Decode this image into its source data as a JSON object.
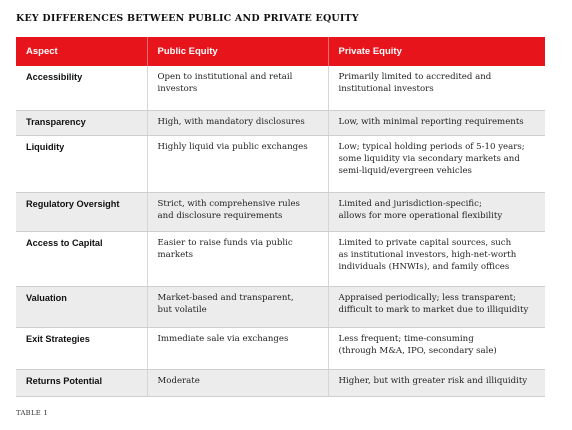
{
  "title": "KEY DIFFERENCES BETWEEN PUBLIC AND PRIVATE EQUITY",
  "headers": {
    "aspect": "Aspect",
    "public": "Public Equity",
    "private": "Private Equity"
  },
  "rows": [
    {
      "aspect": "Accessibility",
      "public": "Open to institutional and retail\ninvestors",
      "private": "Primarily limited to accredited and\ninstitutional investors"
    },
    {
      "aspect": "Transparency",
      "public": "High, with mandatory disclosures",
      "private": "Low, with minimal reporting requirements"
    },
    {
      "aspect": "Liquidity",
      "public": "Highly liquid via public exchanges",
      "private": "Low; typical holding periods of 5-10 years;\nsome liquidity via secondary markets and\nsemi-liquid/evergreen vehicles"
    },
    {
      "aspect": "Regulatory Oversight",
      "public": "Strict, with comprehensive rules\nand disclosure requirements",
      "private": "Limited and jurisdiction-specific;\nallows for more operational flexibility"
    },
    {
      "aspect": "Access to Capital",
      "public": "Easier to raise funds via public\nmarkets",
      "private": "Limited to private capital sources, such\nas institutional investors, high-net-worth\nindividuals (HNWIs), and family offices"
    },
    {
      "aspect": "Valuation",
      "public": "Market-based and transparent,\nbut volatile",
      "private": "Appraised periodically; less transparent;\ndifficult to mark to market due to illiquidity"
    },
    {
      "aspect": "Exit Strategies",
      "public": "Immediate sale via exchanges",
      "private": "Less frequent; time-consuming\n(through M&A, IPO, secondary sale)"
    },
    {
      "aspect": "Returns Potential",
      "public": "Moderate",
      "private": "Higher, but with greater risk and illiquidity"
    }
  ],
  "caption": "TABLE 1",
  "colors": {
    "header_bg": "#e8141c",
    "alt_row_bg": "#ececec"
  }
}
